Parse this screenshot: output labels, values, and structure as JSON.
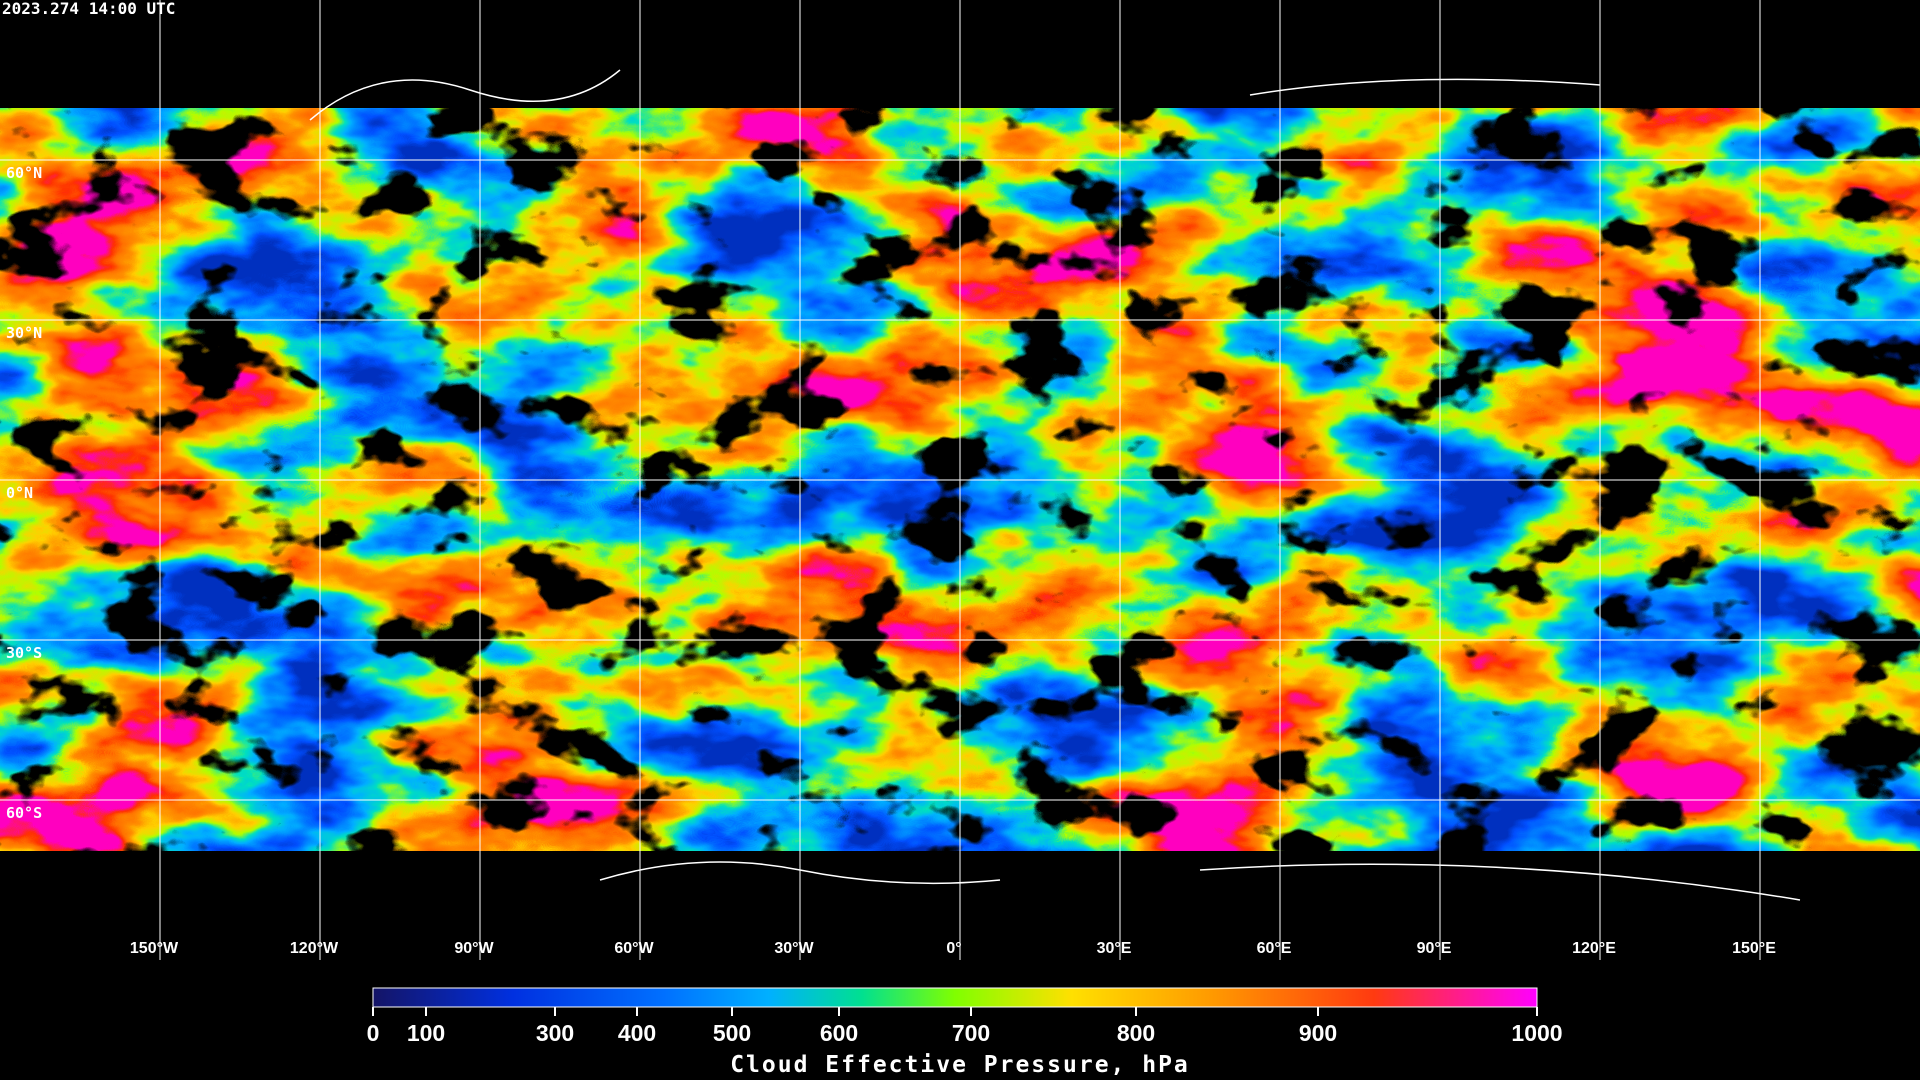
{
  "header": {
    "timestamp": "2023.274 14:00 UTC"
  },
  "map": {
    "latitude_labels": [
      "60°N",
      "30°N",
      "0°N",
      "30°S",
      "60°S"
    ],
    "longitude_labels": [
      "150°W",
      "120°W",
      "90°W",
      "60°W",
      "30°W",
      "0°",
      "30°E",
      "60°E",
      "90°E",
      "120°E",
      "150°E"
    ]
  },
  "colorbar": {
    "ticks": [
      0,
      100,
      300,
      400,
      500,
      600,
      700,
      800,
      900,
      1000
    ],
    "label": "Cloud Effective Pressure, hPa"
  }
}
